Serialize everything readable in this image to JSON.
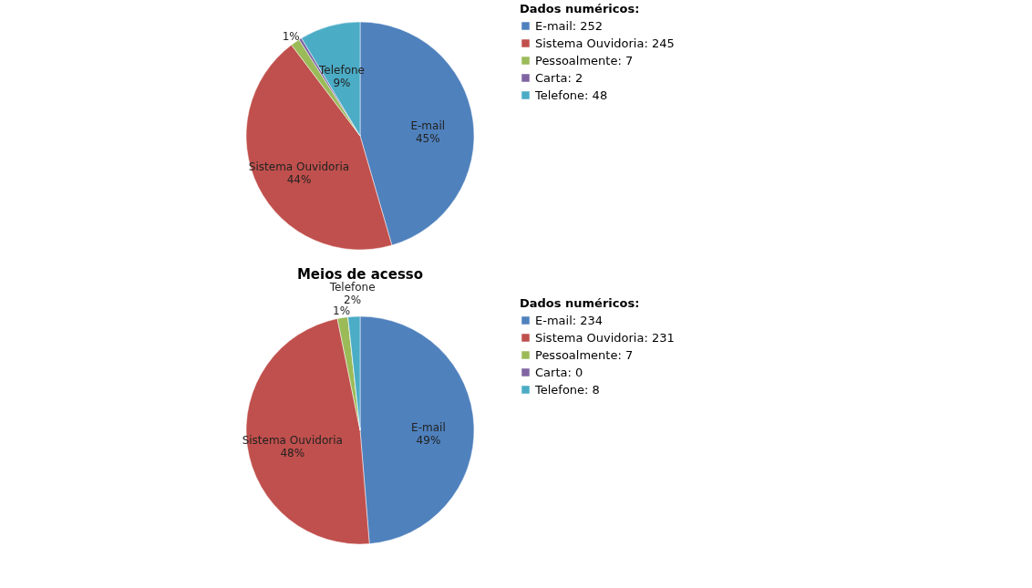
{
  "chart_data": [
    {
      "type": "pie",
      "categories": [
        "E-mail: 252",
        "Sistema Ouvidoria: 245",
        "Pessoalmente: 7",
        "Carta: 2",
        "Telefone: 48"
      ],
      "values": [
        45.5,
        44.2,
        1.3,
        0.4,
        8.6
      ],
      "colors": [
        "#4f81bd",
        "#c0504d",
        "#9bbb59",
        "#8064a2",
        "#4bacc6"
      ],
      "value_labels": [
        "E-mail\n45%",
        "Sistema Ouvidoria\n44%",
        "1%",
        null,
        "Telefone\n9%"
      ],
      "legend_title": "Dados numéricos:",
      "legend": "right"
    },
    {
      "type": "pie",
      "title": "Meios de acesso",
      "categories": [
        "E-mail: 234",
        "Sistema Ouvidoria: 231",
        "Pessoalmente: 7",
        "Carta: 0",
        "Telefone: 8"
      ],
      "values": [
        48.7,
        48.1,
        1.5,
        0,
        1.7
      ],
      "colors": [
        "#4f81bd",
        "#c0504d",
        "#9bbb59",
        "#8064a2",
        "#4bacc6"
      ],
      "value_labels": [
        "E-mail\n49%",
        "Sistema Ouvidoria\n48%",
        "1%",
        null,
        "Telefone\n2%"
      ],
      "legend_title": "Dados numéricos:",
      "legend": "right"
    }
  ]
}
